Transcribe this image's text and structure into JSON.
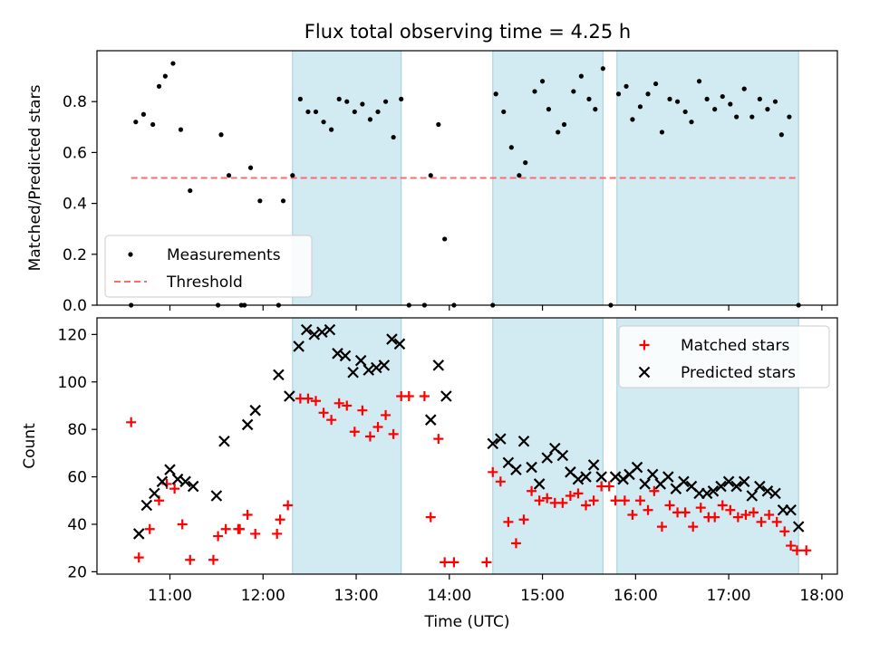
{
  "title": "Flux total observing time = 4.25 h",
  "colors": {
    "measurements": "#000000",
    "threshold": "#ff6b6b",
    "matched": "#ff0000",
    "predicted": "#000000",
    "band": "#add8e6"
  },
  "chart_data": [
    {
      "type": "scatter",
      "ylabel": "Matched/Predicted stars",
      "xlim": [
        "10:13",
        "18:10"
      ],
      "ylim": [
        0,
        1.0
      ],
      "yticks": [
        0.0,
        0.2,
        0.4,
        0.6,
        0.8
      ],
      "yticklabels": [
        "0.0",
        "0.2",
        "0.4",
        "0.6",
        "0.8"
      ],
      "legend_position": "lower-left",
      "legend": [
        {
          "name": "Measurements",
          "marker": "dot"
        },
        {
          "name": "Threshold",
          "marker": "dashed-line"
        }
      ],
      "shaded_intervals": [
        [
          "12:19",
          "13:29"
        ],
        [
          "14:28",
          "15:39"
        ],
        [
          "15:48",
          "17:45"
        ]
      ],
      "threshold": {
        "name": "Threshold",
        "y": 0.5,
        "x": [
          "10:35",
          "17:45"
        ]
      },
      "series": [
        {
          "name": "Measurements",
          "points": [
            [
              "10:35",
              0.0
            ],
            [
              "10:38",
              0.72
            ],
            [
              "10:43",
              0.75
            ],
            [
              "10:49",
              0.71
            ],
            [
              "10:53",
              0.86
            ],
            [
              "10:57",
              0.9
            ],
            [
              "11:02",
              0.95
            ],
            [
              "11:07",
              0.69
            ],
            [
              "11:13",
              0.45
            ],
            [
              "11:31",
              0.0
            ],
            [
              "11:33",
              0.67
            ],
            [
              "11:38",
              0.51
            ],
            [
              "11:46",
              0.0
            ],
            [
              "11:48",
              0.0
            ],
            [
              "11:52",
              0.54
            ],
            [
              "11:58",
              0.41
            ],
            [
              "12:10",
              0.0
            ],
            [
              "12:13",
              0.41
            ],
            [
              "12:19",
              0.51
            ],
            [
              "12:24",
              0.81
            ],
            [
              "12:29",
              0.76
            ],
            [
              "12:34",
              0.76
            ],
            [
              "12:39",
              0.72
            ],
            [
              "12:44",
              0.69
            ],
            [
              "12:49",
              0.81
            ],
            [
              "12:54",
              0.8
            ],
            [
              "12:59",
              0.76
            ],
            [
              "13:04",
              0.79
            ],
            [
              "13:09",
              0.73
            ],
            [
              "13:14",
              0.76
            ],
            [
              "13:19",
              0.8
            ],
            [
              "13:24",
              0.66
            ],
            [
              "13:29",
              0.81
            ],
            [
              "13:34",
              0.0
            ],
            [
              "13:44",
              0.0
            ],
            [
              "13:48",
              0.51
            ],
            [
              "13:53",
              0.71
            ],
            [
              "13:57",
              0.26
            ],
            [
              "14:03",
              0.0
            ],
            [
              "14:28",
              0.0
            ],
            [
              "14:30",
              0.83
            ],
            [
              "14:35",
              0.76
            ],
            [
              "14:40",
              0.62
            ],
            [
              "14:45",
              0.51
            ],
            [
              "14:49",
              0.56
            ],
            [
              "14:55",
              0.84
            ],
            [
              "15:00",
              0.88
            ],
            [
              "15:04",
              0.77
            ],
            [
              "15:10",
              0.68
            ],
            [
              "15:14",
              0.71
            ],
            [
              "15:20",
              0.84
            ],
            [
              "15:25",
              0.9
            ],
            [
              "15:30",
              0.81
            ],
            [
              "15:34",
              0.77
            ],
            [
              "15:39",
              0.93
            ],
            [
              "15:44",
              0.0
            ],
            [
              "15:49",
              0.83
            ],
            [
              "15:54",
              0.86
            ],
            [
              "15:58",
              0.73
            ],
            [
              "16:03",
              0.78
            ],
            [
              "16:08",
              0.83
            ],
            [
              "16:13",
              0.87
            ],
            [
              "16:17",
              0.68
            ],
            [
              "16:22",
              0.81
            ],
            [
              "16:27",
              0.8
            ],
            [
              "16:32",
              0.76
            ],
            [
              "16:36",
              0.72
            ],
            [
              "16:41",
              0.88
            ],
            [
              "16:46",
              0.81
            ],
            [
              "16:51",
              0.77
            ],
            [
              "16:56",
              0.82
            ],
            [
              "17:01",
              0.79
            ],
            [
              "17:05",
              0.74
            ],
            [
              "17:10",
              0.85
            ],
            [
              "17:15",
              0.74
            ],
            [
              "17:20",
              0.81
            ],
            [
              "17:25",
              0.77
            ],
            [
              "17:30",
              0.8
            ],
            [
              "17:34",
              0.67
            ],
            [
              "17:39",
              0.74
            ],
            [
              "17:45",
              0.0
            ]
          ]
        }
      ]
    },
    {
      "type": "scatter",
      "xlabel": "Time (UTC)",
      "ylabel": "Count",
      "xlim": [
        "10:13",
        "18:10"
      ],
      "ylim": [
        19,
        127
      ],
      "yticks": [
        20,
        40,
        60,
        80,
        100,
        120
      ],
      "xticks": [
        "11:00",
        "12:00",
        "13:00",
        "14:00",
        "15:00",
        "16:00",
        "17:00",
        "18:00"
      ],
      "legend_position": "upper-right",
      "legend": [
        {
          "name": "Matched stars",
          "marker": "plus"
        },
        {
          "name": "Predicted stars",
          "marker": "x"
        }
      ],
      "shaded_intervals": [
        [
          "12:19",
          "13:29"
        ],
        [
          "14:28",
          "15:39"
        ],
        [
          "15:48",
          "17:45"
        ]
      ],
      "series": [
        {
          "name": "Matched stars",
          "marker": "plus",
          "points": [
            [
              "10:35",
              83
            ],
            [
              "10:40",
              26
            ],
            [
              "10:47",
              38
            ],
            [
              "10:53",
              50
            ],
            [
              "10:58",
              57
            ],
            [
              "11:03",
              55
            ],
            [
              "11:08",
              40
            ],
            [
              "11:13",
              25
            ],
            [
              "11:28",
              25
            ],
            [
              "11:31",
              35
            ],
            [
              "11:36",
              38
            ],
            [
              "11:44",
              38
            ],
            [
              "11:45",
              38
            ],
            [
              "11:50",
              44
            ],
            [
              "11:55",
              36
            ],
            [
              "12:09",
              36
            ],
            [
              "12:11",
              42
            ],
            [
              "12:16",
              48
            ],
            [
              "12:24",
              93
            ],
            [
              "12:29",
              93
            ],
            [
              "12:34",
              92
            ],
            [
              "12:39",
              87
            ],
            [
              "12:44",
              84
            ],
            [
              "12:49",
              91
            ],
            [
              "12:54",
              90
            ],
            [
              "12:59",
              79
            ],
            [
              "13:04",
              88
            ],
            [
              "13:09",
              77
            ],
            [
              "13:14",
              81
            ],
            [
              "13:19",
              86
            ],
            [
              "13:24",
              78
            ],
            [
              "13:29",
              94
            ],
            [
              "13:34",
              94
            ],
            [
              "13:44",
              94
            ],
            [
              "13:48",
              43
            ],
            [
              "13:53",
              76
            ],
            [
              "13:57",
              24
            ],
            [
              "14:03",
              24
            ],
            [
              "14:24",
              24
            ],
            [
              "14:28",
              62
            ],
            [
              "14:33",
              58
            ],
            [
              "14:38",
              41
            ],
            [
              "14:43",
              32
            ],
            [
              "14:48",
              42
            ],
            [
              "14:53",
              54
            ],
            [
              "14:58",
              50
            ],
            [
              "15:03",
              51
            ],
            [
              "15:08",
              49
            ],
            [
              "15:13",
              49
            ],
            [
              "15:18",
              52
            ],
            [
              "15:23",
              53
            ],
            [
              "15:28",
              48
            ],
            [
              "15:33",
              50
            ],
            [
              "15:38",
              56
            ],
            [
              "15:43",
              56
            ],
            [
              "15:47",
              50
            ],
            [
              "15:53",
              50
            ],
            [
              "15:58",
              44
            ],
            [
              "16:03",
              50
            ],
            [
              "16:08",
              46
            ],
            [
              "16:12",
              54
            ],
            [
              "16:17",
              39
            ],
            [
              "16:22",
              48
            ],
            [
              "16:27",
              45
            ],
            [
              "16:32",
              45
            ],
            [
              "16:37",
              39
            ],
            [
              "16:42",
              47
            ],
            [
              "16:47",
              43
            ],
            [
              "16:51",
              43
            ],
            [
              "16:56",
              48
            ],
            [
              "17:01",
              46
            ],
            [
              "17:06",
              43
            ],
            [
              "17:11",
              44
            ],
            [
              "17:16",
              45
            ],
            [
              "17:21",
              41
            ],
            [
              "17:26",
              44
            ],
            [
              "17:31",
              41
            ],
            [
              "17:36",
              37
            ],
            [
              "17:40",
              31
            ],
            [
              "17:44",
              29
            ],
            [
              "17:50",
              29
            ]
          ]
        },
        {
          "name": "Predicted stars",
          "marker": "x",
          "points": [
            [
              "10:40",
              36
            ],
            [
              "10:45",
              48
            ],
            [
              "10:50",
              53
            ],
            [
              "10:55",
              58
            ],
            [
              "11:00",
              63
            ],
            [
              "11:05",
              59
            ],
            [
              "11:10",
              58
            ],
            [
              "11:15",
              56
            ],
            [
              "11:30",
              52
            ],
            [
              "11:35",
              75
            ],
            [
              "11:50",
              82
            ],
            [
              "11:55",
              88
            ],
            [
              "12:10",
              103
            ],
            [
              "12:17",
              94
            ],
            [
              "12:23",
              115
            ],
            [
              "12:28",
              122
            ],
            [
              "12:33",
              120
            ],
            [
              "12:38",
              121
            ],
            [
              "12:43",
              122
            ],
            [
              "12:48",
              112
            ],
            [
              "12:53",
              111
            ],
            [
              "12:58",
              104
            ],
            [
              "13:03",
              109
            ],
            [
              "13:08",
              105
            ],
            [
              "13:13",
              106
            ],
            [
              "13:18",
              107
            ],
            [
              "13:23",
              118
            ],
            [
              "13:28",
              116
            ],
            [
              "13:48",
              84
            ],
            [
              "13:53",
              107
            ],
            [
              "13:58",
              94
            ],
            [
              "14:28",
              74
            ],
            [
              "14:33",
              76
            ],
            [
              "14:38",
              66
            ],
            [
              "14:43",
              63
            ],
            [
              "14:48",
              75
            ],
            [
              "14:53",
              64
            ],
            [
              "14:58",
              57
            ],
            [
              "15:03",
              68
            ],
            [
              "15:08",
              72
            ],
            [
              "15:13",
              69
            ],
            [
              "15:18",
              62
            ],
            [
              "15:23",
              59
            ],
            [
              "15:28",
              60
            ],
            [
              "15:33",
              65
            ],
            [
              "15:38",
              60
            ],
            [
              "15:47",
              60
            ],
            [
              "15:52",
              59
            ],
            [
              "15:56",
              61
            ],
            [
              "16:01",
              64
            ],
            [
              "16:06",
              57
            ],
            [
              "16:11",
              61
            ],
            [
              "16:16",
              57
            ],
            [
              "16:21",
              60
            ],
            [
              "16:26",
              55
            ],
            [
              "16:31",
              58
            ],
            [
              "16:36",
              56
            ],
            [
              "16:41",
              53
            ],
            [
              "16:46",
              53
            ],
            [
              "16:50",
              54
            ],
            [
              "16:55",
              56
            ],
            [
              "17:00",
              58
            ],
            [
              "17:05",
              56
            ],
            [
              "17:10",
              58
            ],
            [
              "17:15",
              52
            ],
            [
              "17:20",
              56
            ],
            [
              "17:25",
              54
            ],
            [
              "17:30",
              53
            ],
            [
              "17:35",
              46
            ],
            [
              "17:40",
              46
            ],
            [
              "17:45",
              39
            ]
          ]
        }
      ]
    }
  ]
}
